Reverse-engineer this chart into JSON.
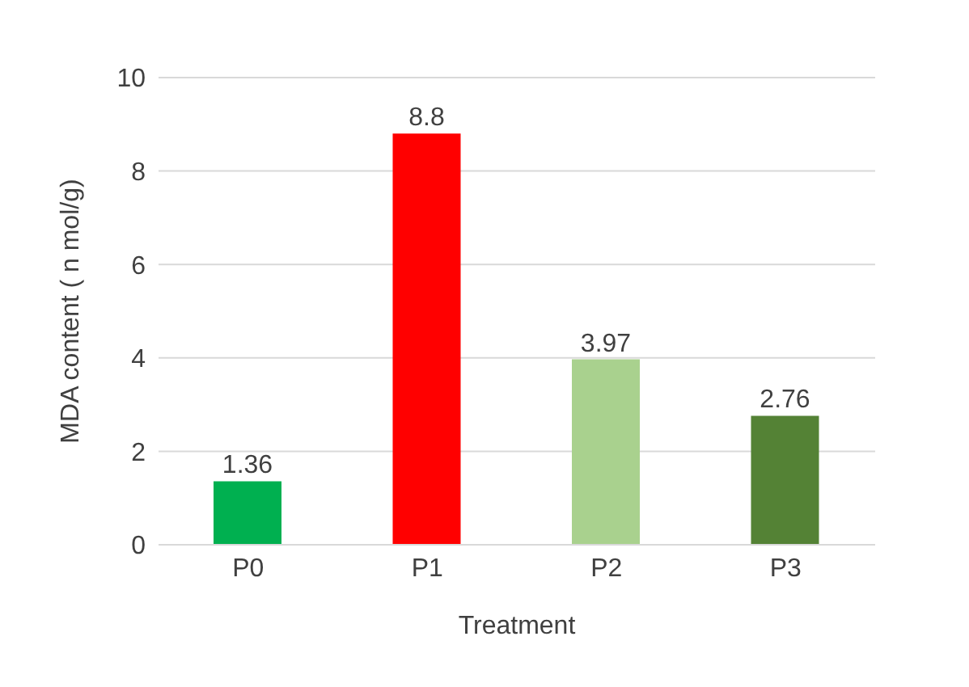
{
  "chart_data": {
    "type": "bar",
    "xlabel": "Treatment",
    "ylabel": "MDA content ( n mol/g)",
    "categories": [
      "P0",
      "P1",
      "P2",
      "P3"
    ],
    "values": [
      1.36,
      8.8,
      3.97,
      2.76
    ],
    "colors": [
      "#00b050",
      "#ff0000",
      "#a9d18e",
      "#548235"
    ],
    "ylim": [
      0,
      10
    ],
    "yticks": [
      0,
      2,
      4,
      6,
      8,
      10
    ],
    "grid": "y",
    "data_labels": true
  }
}
